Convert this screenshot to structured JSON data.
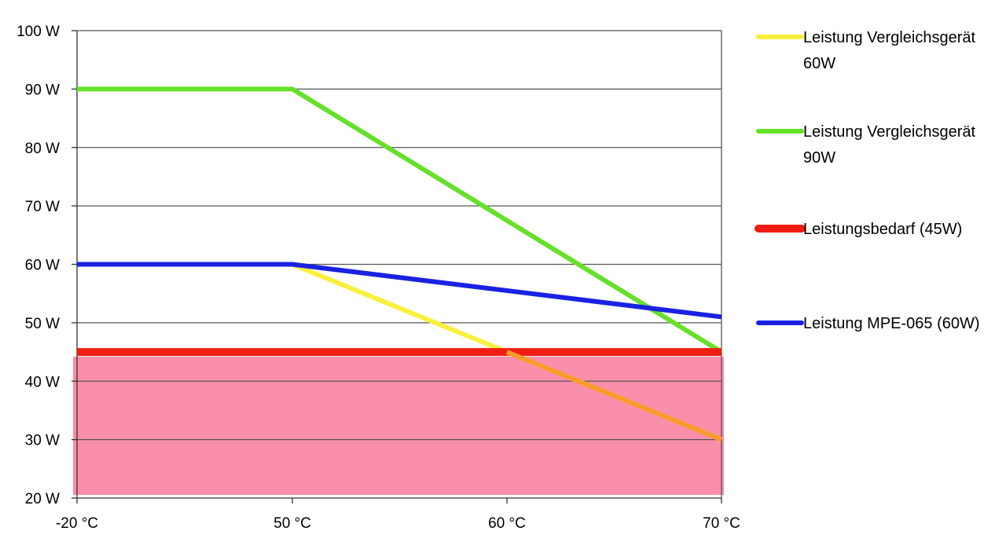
{
  "chart_data": {
    "type": "line",
    "x_categories": [
      "-20 °C",
      "50 °C",
      "60 °C",
      "70 °C"
    ],
    "y_ticks": [
      {
        "value": 20,
        "label": "20 W"
      },
      {
        "value": 30,
        "label": "30 W"
      },
      {
        "value": 40,
        "label": "40 W"
      },
      {
        "value": 50,
        "label": "50 W"
      },
      {
        "value": 60,
        "label": "60 W"
      },
      {
        "value": 70,
        "label": "70 W"
      },
      {
        "value": 80,
        "label": "80 W"
      },
      {
        "value": 90,
        "label": "90 W"
      },
      {
        "value": 100,
        "label": "100 W"
      }
    ],
    "ylim": [
      20,
      100
    ],
    "grid": "horizontal",
    "legend_position": "right",
    "shaded_region": {
      "from": 20,
      "to": 45,
      "color": "#f98eaa"
    },
    "overlap_color": "#f99a2a",
    "series": [
      {
        "name": "Leistung Vergleichsgerät 60W",
        "legend_lines": [
          "Leistung Vergleichsgerät",
          "60W"
        ],
        "color": "#f8f03c",
        "values": [
          60,
          60,
          45,
          30
        ]
      },
      {
        "name": "Leistung Vergleichsgerät 90W",
        "legend_lines": [
          "Leistung Vergleichsgerät",
          "90W"
        ],
        "color": "#66e02a",
        "values": [
          90,
          90,
          null,
          45
        ]
      },
      {
        "name": "Leistungsbedarf (45W)",
        "legend_lines": [
          "Leistungsbedarf (45W)"
        ],
        "color": "#f21d12",
        "values": [
          45,
          45,
          45,
          45
        ]
      },
      {
        "name": "Leistung MPE-065 (60W)",
        "legend_lines": [
          "Leistung MPE-065 (60W)"
        ],
        "color": "#1a22e2",
        "values": [
          60,
          60,
          null,
          51
        ]
      }
    ]
  }
}
